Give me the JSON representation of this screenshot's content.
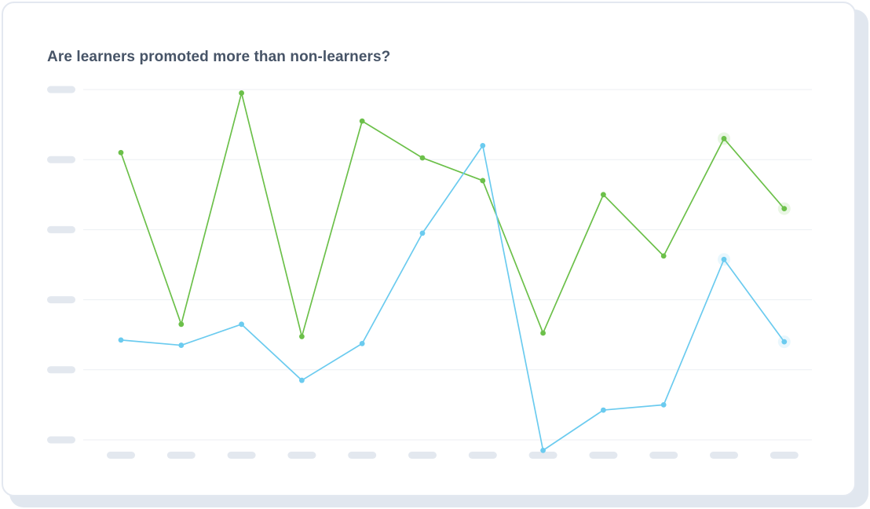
{
  "title": "Are learners promoted more than non-learners?",
  "colors": {
    "learners": "#6cc04a",
    "non_learners": "#6bcbef",
    "grid": "#eceff3",
    "placeholder": "#e3e8ef",
    "title": "#475467"
  },
  "chart_data": {
    "type": "line",
    "title": "Are learners promoted more than non-learners?",
    "xlabel": "",
    "ylabel": "",
    "categories": [
      "",
      "",
      "",
      "",
      "",
      "",
      "",
      "",
      "",
      "",
      "",
      ""
    ],
    "y_ticks": [
      "",
      "",
      "",
      "",
      "",
      ""
    ],
    "ylim": [
      0,
      100
    ],
    "grid": true,
    "legend": "none",
    "series": [
      {
        "color": "#6cc04a",
        "values": [
          82,
          33,
          99,
          29.5,
          91,
          80.5,
          74,
          30.5,
          70,
          52.5,
          86,
          66
        ],
        "highlight_last_n": 2
      },
      {
        "color": "#6bcbef",
        "values": [
          28.5,
          27,
          33,
          17,
          27.5,
          59,
          84,
          -3,
          8.5,
          10,
          51.5,
          28
        ],
        "highlight_last_n": 2
      }
    ]
  }
}
